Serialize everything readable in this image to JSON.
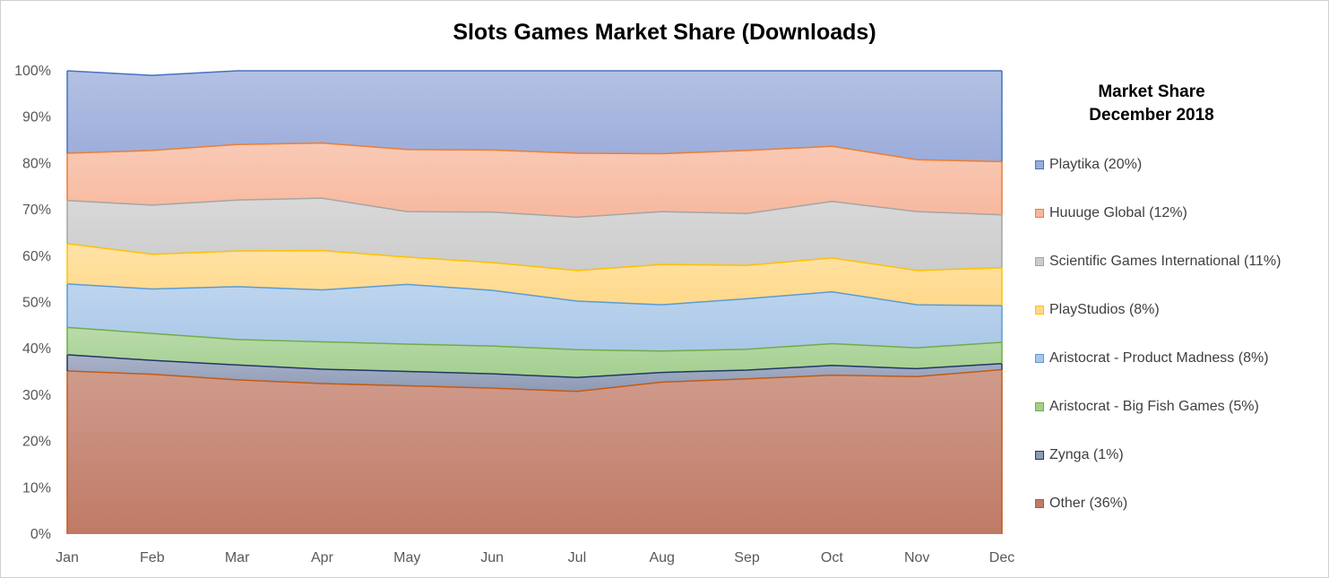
{
  "chart_data": {
    "type": "area",
    "stacked": true,
    "title": "Slots Games Market Share (Downloads)",
    "xlabel": "",
    "ylabel": "",
    "ylim": [
      0,
      100
    ],
    "y_tick_labels": [
      "0%",
      "10%",
      "20%",
      "30%",
      "40%",
      "50%",
      "60%",
      "70%",
      "80%",
      "90%",
      "100%"
    ],
    "categories": [
      "Jan",
      "Feb",
      "Mar",
      "Apr",
      "May",
      "Jun",
      "Jul",
      "Aug",
      "Sep",
      "Oct",
      "Nov",
      "Dec"
    ],
    "legend_title": [
      "Market Share",
      "December 2018"
    ],
    "legend_position": "right",
    "grid": false,
    "series": [
      {
        "name": "Other (36%)",
        "color": "#c07a66",
        "line": "#c55a11",
        "values": [
          35.2,
          34.5,
          33.3,
          32.5,
          32.0,
          31.5,
          30.8,
          32.8,
          33.5,
          34.3,
          34.0,
          35.5
        ]
      },
      {
        "name": "Zynga (1%)",
        "color": "#8e9ab6",
        "line": "#1f3864",
        "values": [
          3.5,
          3.0,
          3.2,
          3.1,
          3.1,
          3.1,
          3.0,
          2.1,
          1.9,
          2.1,
          1.7,
          1.3
        ]
      },
      {
        "name": "Aristocrat - Big Fish Games (5%)",
        "color": "#a3cf8f",
        "line": "#70ad47",
        "values": [
          5.9,
          5.8,
          5.5,
          5.9,
          5.9,
          6.0,
          6.0,
          4.6,
          4.5,
          4.7,
          4.5,
          4.6
        ]
      },
      {
        "name": "Aristocrat - Product Madness (8%)",
        "color": "#a9c7e8",
        "line": "#5b9bd5",
        "values": [
          9.4,
          9.6,
          11.4,
          11.2,
          12.9,
          12.0,
          10.5,
          10.0,
          10.9,
          11.2,
          9.3,
          7.9
        ]
      },
      {
        "name": "PlayStudios (8%)",
        "color": "#ffd98a",
        "line": "#ffc000",
        "values": [
          8.7,
          7.5,
          7.7,
          8.5,
          5.9,
          6.0,
          6.6,
          8.7,
          7.2,
          7.3,
          7.4,
          8.2
        ]
      },
      {
        "name": "Scientific Games International (11%)",
        "color": "#cccccc",
        "line": "#a5a5a5",
        "values": [
          9.3,
          10.6,
          11.0,
          11.3,
          9.8,
          10.9,
          11.5,
          11.4,
          11.2,
          12.2,
          12.7,
          11.4
        ]
      },
      {
        "name": "Huuuge Global (12%)",
        "color": "#f7b89e",
        "line": "#ed7d31",
        "values": [
          10.2,
          11.8,
          12.0,
          11.9,
          13.4,
          13.4,
          13.8,
          12.5,
          13.6,
          11.9,
          11.2,
          11.5
        ]
      },
      {
        "name": "Playtika (20%)",
        "color": "#9bacda",
        "line": "#4472c4",
        "values": [
          17.8,
          16.2,
          15.9,
          15.6,
          17.0,
          17.1,
          17.8,
          17.9,
          17.2,
          16.3,
          19.2,
          19.6
        ]
      }
    ]
  }
}
